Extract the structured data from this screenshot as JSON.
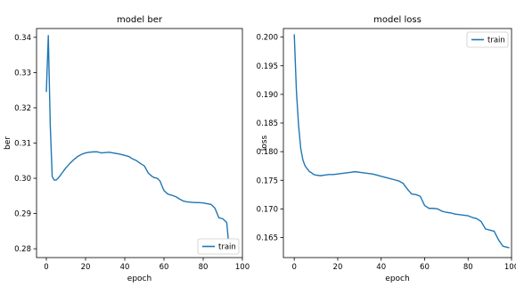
{
  "chart_data": [
    {
      "type": "line",
      "title": "model ber",
      "xlabel": "epoch",
      "ylabel": "ber",
      "xlim": [
        -5,
        100
      ],
      "ylim": [
        0.2775,
        0.3425
      ],
      "xticks": [
        "0",
        "20",
        "40",
        "60",
        "80",
        "100"
      ],
      "yticks": [
        "0.28",
        "0.29",
        "0.30",
        "0.31",
        "0.32",
        "0.33",
        "0.34"
      ],
      "legend": {
        "position": "lower-right",
        "entries": [
          "train"
        ]
      },
      "color": "#1f77b4",
      "series": [
        {
          "name": "train",
          "x": [
            0,
            1,
            2,
            3,
            4,
            5,
            6,
            8,
            10,
            12,
            14,
            16,
            18,
            20,
            22,
            24,
            26,
            28,
            30,
            32,
            34,
            36,
            38,
            40,
            42,
            44,
            46,
            48,
            50,
            52,
            54,
            55,
            56,
            57,
            58,
            59,
            60,
            62,
            64,
            66,
            68,
            70,
            72,
            74,
            76,
            78,
            80,
            82,
            84,
            86,
            88,
            90,
            92,
            93
          ],
          "y": [
            0.3245,
            0.3405,
            0.315,
            0.3005,
            0.2995,
            0.2995,
            0.3,
            0.3015,
            0.303,
            0.3042,
            0.3053,
            0.3062,
            0.3068,
            0.3072,
            0.3074,
            0.3075,
            0.3075,
            0.3072,
            0.3073,
            0.3074,
            0.3072,
            0.307,
            0.3068,
            0.3065,
            0.3062,
            0.3055,
            0.305,
            0.3042,
            0.3035,
            0.3015,
            0.3005,
            0.3002,
            0.3001,
            0.2998,
            0.2992,
            0.2978,
            0.2965,
            0.2955,
            0.2952,
            0.2948,
            0.2941,
            0.2935,
            0.2933,
            0.2932,
            0.2931,
            0.2931,
            0.293,
            0.2928,
            0.2926,
            0.2915,
            0.2888,
            0.2885,
            0.2875,
            0.2815
          ]
        }
      ]
    },
    {
      "type": "line",
      "title": "model loss",
      "xlabel": "epoch",
      "ylabel": "loss",
      "xlim": [
        -5,
        100
      ],
      "ylim": [
        0.1615,
        0.2015
      ],
      "xticks": [
        "0",
        "20",
        "40",
        "60",
        "80",
        "100"
      ],
      "yticks": [
        "0.165",
        "0.170",
        "0.175",
        "0.180",
        "0.185",
        "0.190",
        "0.195",
        "0.200"
      ],
      "legend": {
        "position": "upper-right",
        "entries": [
          "train"
        ]
      },
      "color": "#1f77b4",
      "series": [
        {
          "name": "train",
          "x": [
            0,
            1,
            2,
            3,
            4,
            5,
            6,
            7,
            8,
            9,
            10,
            12,
            14,
            16,
            18,
            20,
            22,
            24,
            26,
            28,
            30,
            32,
            34,
            36,
            38,
            40,
            42,
            44,
            46,
            48,
            50,
            52,
            54,
            56,
            58,
            60,
            62,
            64,
            66,
            68,
            70,
            72,
            74,
            76,
            78,
            80,
            82,
            84,
            86,
            88,
            90,
            92,
            94,
            96,
            98,
            99
          ],
          "y": [
            0.2005,
            0.1905,
            0.1845,
            0.1805,
            0.1785,
            0.1775,
            0.177,
            0.1765,
            0.1763,
            0.176,
            0.1759,
            0.1758,
            0.1759,
            0.176,
            0.176,
            0.1761,
            0.1762,
            0.1763,
            0.1764,
            0.1765,
            0.1764,
            0.1763,
            0.1762,
            0.1761,
            0.1759,
            0.1757,
            0.1755,
            0.1753,
            0.1751,
            0.1749,
            0.1745,
            0.1735,
            0.1726,
            0.1725,
            0.1722,
            0.1706,
            0.1701,
            0.1701,
            0.17,
            0.1696,
            0.1694,
            0.1693,
            0.1691,
            0.169,
            0.1689,
            0.1688,
            0.1685,
            0.1683,
            0.1678,
            0.1665,
            0.1663,
            0.1661,
            0.1646,
            0.1635,
            0.1633,
            0.1632
          ]
        }
      ]
    }
  ]
}
